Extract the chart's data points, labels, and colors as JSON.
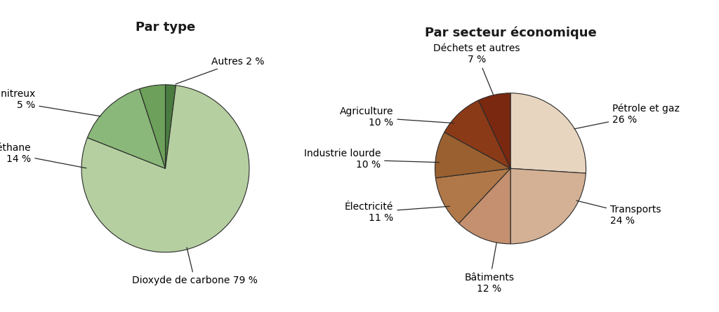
{
  "chart1_title": "Par type",
  "chart1_values": [
    2,
    79,
    14,
    5
  ],
  "chart1_colors": [
    "#4a7c3f",
    "#b5cfa0",
    "#8ab87a",
    "#6da05a"
  ],
  "chart1_startangle": 90,
  "chart2_title": "Par secteur économique",
  "chart2_values": [
    26,
    24,
    12,
    11,
    10,
    10,
    7
  ],
  "chart2_colors": [
    "#e8d5c0",
    "#d4b094",
    "#c49070",
    "#b07848",
    "#9a6030",
    "#8b3a18",
    "#7a2810"
  ],
  "chart2_startangle": 90,
  "background_color": "#ffffff",
  "title_fontsize": 13,
  "label_fontsize": 10,
  "title_fontweight": "bold",
  "edge_color": "#2a2a2a",
  "edge_lw": 0.8,
  "line_color": "#2a2a2a"
}
